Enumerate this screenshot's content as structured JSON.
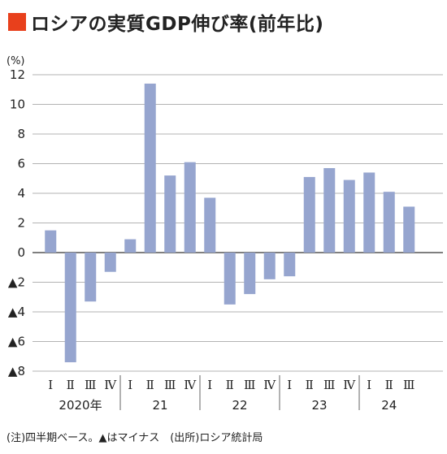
{
  "accent_color": "#e8401c",
  "bar_color": "#96a5cf",
  "note": "(注)四半期ベース。▲はマイナス　(出所)ロシア統計局",
  "chart_data": {
    "type": "bar",
    "title": "ロシアの実質GDP伸び率(前年比)",
    "unit_label": "(%)",
    "ylim": [
      -8,
      12
    ],
    "yticks": [
      12,
      10,
      8,
      6,
      4,
      2,
      0,
      -2,
      -4,
      -6,
      -8
    ],
    "ytick_labels": [
      "12",
      "10",
      "8",
      "6",
      "4",
      "2",
      "0",
      "▲2",
      "▲4",
      "▲6",
      "▲8"
    ],
    "grid": true,
    "categories": [
      "Ⅰ",
      "Ⅱ",
      "Ⅲ",
      "Ⅳ",
      "Ⅰ",
      "Ⅱ",
      "Ⅲ",
      "Ⅳ",
      "Ⅰ",
      "Ⅱ",
      "Ⅲ",
      "Ⅳ",
      "Ⅰ",
      "Ⅱ",
      "Ⅲ",
      "Ⅳ",
      "Ⅰ",
      "Ⅱ",
      "Ⅲ"
    ],
    "values": [
      1.5,
      -7.4,
      -3.3,
      -1.3,
      0.9,
      11.4,
      5.2,
      6.1,
      3.7,
      -3.5,
      -2.8,
      -1.8,
      -1.6,
      5.1,
      5.7,
      4.9,
      5.4,
      4.1,
      3.1
    ],
    "years": [
      {
        "label": "2020年",
        "quarters": 4
      },
      {
        "label": "21",
        "quarters": 4
      },
      {
        "label": "22",
        "quarters": 4
      },
      {
        "label": "23",
        "quarters": 4
      },
      {
        "label": "24",
        "quarters": 3
      }
    ]
  }
}
